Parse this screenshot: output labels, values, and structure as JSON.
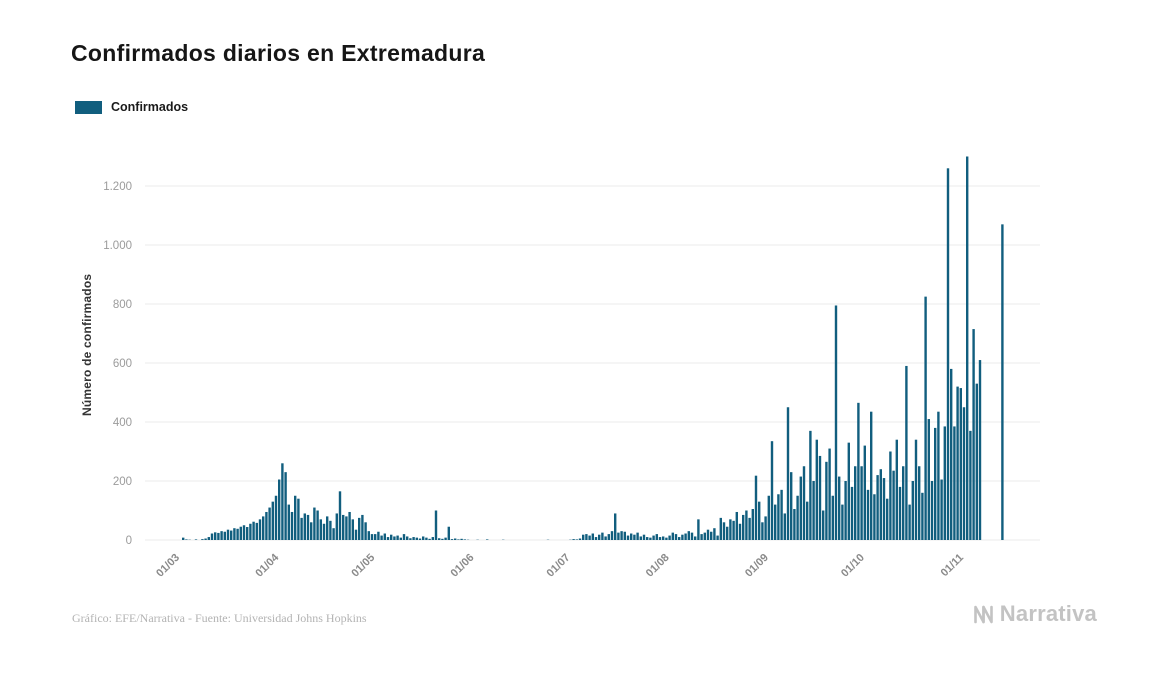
{
  "chart": {
    "title": "Confirmados diarios en Extremadura",
    "legend_label": "Confirmados",
    "ylabel": "Número de confirmados"
  },
  "footer": {
    "caption": "Gráfico: EFE/Narrativa - Fuente: Universidad Johns Hopkins",
    "brand": "Narrativa"
  },
  "chart_data": {
    "type": "bar",
    "title": "Confirmados diarios en Extremadura",
    "ylabel": "Número de confirmados",
    "legend": [
      "Confirmados"
    ],
    "legend_position": "top-left",
    "grid": true,
    "ylim": [
      0,
      1300
    ],
    "yticks": [
      0,
      200,
      400,
      600,
      800,
      1000,
      1200
    ],
    "ytick_labels": [
      "0",
      "200",
      "400",
      "600",
      "800",
      "1.000",
      "1.200"
    ],
    "xtick_labels": [
      "01/03",
      "01/04",
      "01/05",
      "01/06",
      "01/07",
      "01/08",
      "01/09",
      "01/10",
      "01/11"
    ],
    "xtick_indices": [
      0,
      31,
      61,
      92,
      122,
      153,
      184,
      214,
      245
    ],
    "values": [
      0,
      8,
      2,
      1,
      0,
      2,
      0,
      3,
      5,
      10,
      22,
      26,
      24,
      30,
      28,
      35,
      32,
      40,
      38,
      45,
      50,
      44,
      55,
      62,
      58,
      70,
      80,
      95,
      110,
      130,
      150,
      205,
      260,
      230,
      120,
      95,
      150,
      140,
      75,
      90,
      85,
      60,
      110,
      100,
      70,
      55,
      80,
      65,
      40,
      90,
      165,
      85,
      80,
      95,
      70,
      35,
      75,
      85,
      60,
      30,
      20,
      20,
      28,
      15,
      22,
      10,
      18,
      12,
      15,
      8,
      20,
      12,
      6,
      10,
      8,
      5,
      12,
      8,
      4,
      10,
      100,
      6,
      4,
      8,
      45,
      3,
      5,
      2,
      4,
      2,
      1,
      0,
      0,
      1,
      0,
      0,
      2,
      0,
      0,
      0,
      0,
      1,
      0,
      0,
      0,
      0,
      0,
      0,
      0,
      0,
      0,
      0,
      0,
      0,
      0,
      1,
      0,
      0,
      0,
      0,
      0,
      0,
      1,
      3,
      2,
      5,
      18,
      20,
      15,
      22,
      10,
      18,
      25,
      12,
      20,
      30,
      90,
      25,
      30,
      28,
      15,
      22,
      18,
      25,
      12,
      18,
      10,
      8,
      15,
      20,
      10,
      12,
      8,
      15,
      25,
      20,
      10,
      18,
      22,
      30,
      25,
      12,
      70,
      20,
      25,
      35,
      28,
      40,
      15,
      75,
      60,
      45,
      70,
      65,
      95,
      55,
      85,
      100,
      75,
      105,
      218,
      130,
      60,
      80,
      150,
      335,
      120,
      155,
      170,
      90,
      450,
      230,
      105,
      150,
      215,
      250,
      130,
      370,
      200,
      340,
      285,
      100,
      265,
      310,
      150,
      795,
      215,
      120,
      200,
      330,
      180,
      250,
      465,
      250,
      320,
      170,
      435,
      155,
      220,
      240,
      210,
      140,
      300,
      235,
      340,
      180,
      250,
      590,
      120,
      200,
      340,
      250,
      160,
      825,
      410,
      200,
      380,
      435,
      205,
      385,
      1260,
      580,
      385,
      520,
      515,
      450,
      1300,
      370,
      715,
      530,
      610,
      0,
      0,
      0,
      0,
      0,
      0,
      1070
    ],
    "colors": {
      "bar": "#115e7e",
      "grid": "#ebebeb",
      "ytick_text": "#9b9b9b",
      "xtick_text": "#8a8a8a",
      "title": "#161616",
      "footer_text": "#b3b3b3",
      "brand": "#c3c3c3"
    }
  }
}
